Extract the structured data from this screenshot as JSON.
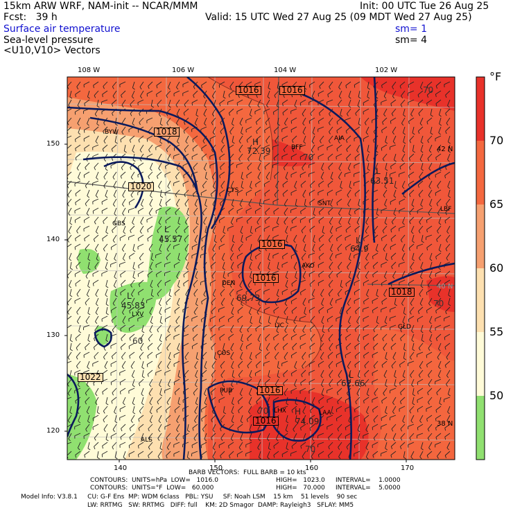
{
  "header": {
    "line1_left": "15km ARW WRF, NAM-init -- NCAR/MMM",
    "line1_right": "Init: 00 UTC Tue 26 Aug 25",
    "line2_left": "Fcst:   39 h",
    "line2_right": "Valid: 15 UTC Wed 27 Aug 25 (09 MDT Wed 27 Aug 25)",
    "field1": "Surface air temperature",
    "field1_sm": "sm= 1",
    "field2": "Sea-level pressure",
    "field2_sm": "sm= 4",
    "field3": "<U10,V10> Vectors"
  },
  "longitudes": [
    "108 W",
    "106 W",
    "104 W",
    "102 W"
  ],
  "latitudes_right": [
    "42 N",
    "40 N",
    "38 N"
  ],
  "grid_y": [
    "150",
    "140",
    "130",
    "120"
  ],
  "grid_x": [
    "140",
    "150",
    "160",
    "170"
  ],
  "colorbar": {
    "unit": "°F",
    "labels": [
      "70",
      "65",
      "60",
      "55",
      "50"
    ],
    "colors": [
      "#e8322a",
      "#f4683f",
      "#f6a070",
      "#fde0b0",
      "#fffbd8",
      "#90e070"
    ]
  },
  "stations": [
    "BYW",
    "AIA",
    "BFF",
    "CYS",
    "SNT",
    "LBF",
    "GBS",
    "AKO",
    "DEN",
    "LIC",
    "GLD",
    "COS",
    "PUB",
    "LHX",
    "LAA",
    "ALS",
    "LXV"
  ],
  "pressure_labels": [
    "1016",
    "1016",
    "1018",
    "1020",
    "1016",
    "1016",
    "1018",
    "1022",
    "1016",
    "1016"
  ],
  "centers": {
    "H1": {
      "label": "H",
      "value": "72.39"
    },
    "L1": {
      "label": "L",
      "value": "63.51"
    },
    "L2": {
      "label": "L",
      "value": "45.57"
    },
    "L3": {
      "label": "L",
      "value": "45.83"
    },
    "L4": {
      "label": "L",
      "value": "64.9"
    },
    "L5": {
      "label": "L",
      "value": "62.66"
    },
    "H2": {
      "label": "H",
      "value": "74.09"
    },
    "T1": {
      "label": "",
      "value": "69.73"
    }
  },
  "contour_values": [
    "70",
    "70",
    "70",
    "70",
    "60",
    "70"
  ],
  "footer": {
    "barb": "BARB VECTORS:  FULL BARB = 10 kts",
    "c1_label": "CONTOURS:  UNITS=hPa  LOW=   1016.0",
    "c1_high": "HIGH=   1023.0",
    "c1_int": "INTERVAL=    1.0000",
    "c2_label": "CONTOURS:  UNITS=°F  LOW=   60.000",
    "c2_high": "HIGH=   70.000",
    "c2_int": "INTERVAL=    5.0000",
    "model1": "Model Info: V3.8.1     CU: G-F Ens  MP: WDM 6class   PBL: YSU     SF: Noah LSM    15 km    51 levels    90 sec",
    "model2": "LW: RRTMG   SW: RRTMG   DIFF: full    KM: 2D Smagor  DAMP: Rayleigh3   SFLAY: MM5"
  }
}
